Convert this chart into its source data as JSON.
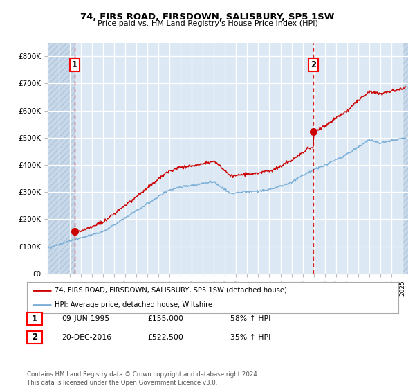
{
  "title": "74, FIRS ROAD, FIRSDOWN, SALISBURY, SP5 1SW",
  "subtitle": "Price paid vs. HM Land Registry's House Price Index (HPI)",
  "ylim": [
    0,
    850000
  ],
  "yticks": [
    0,
    100000,
    200000,
    300000,
    400000,
    500000,
    600000,
    700000,
    800000
  ],
  "ytick_labels": [
    "£0",
    "£100K",
    "£200K",
    "£300K",
    "£400K",
    "£500K",
    "£600K",
    "£700K",
    "£800K"
  ],
  "sale1_year": 1995.44,
  "sale1_price": 155000,
  "sale2_year": 2016.96,
  "sale2_price": 522500,
  "bg_color": "#dce9f5",
  "hatch_bg_color": "#c8d8ea",
  "line_red": "#cc0000",
  "line_blue": "#7aaed6",
  "legend_label_red": "74, FIRS ROAD, FIRSDOWN, SALISBURY, SP5 1SW (detached house)",
  "legend_label_blue": "HPI: Average price, detached house, Wiltshire",
  "table_row1": [
    "1",
    "09-JUN-1995",
    "£155,000",
    "58% ↑ HPI"
  ],
  "table_row2": [
    "2",
    "20-DEC-2016",
    "£522,500",
    "35% ↑ HPI"
  ],
  "footnote": "Contains HM Land Registry data © Crown copyright and database right 2024.\nThis data is licensed under the Open Government Licence v3.0.",
  "xmin": 1993,
  "xmax": 2025.5,
  "hatch_right_start": 2025.0
}
